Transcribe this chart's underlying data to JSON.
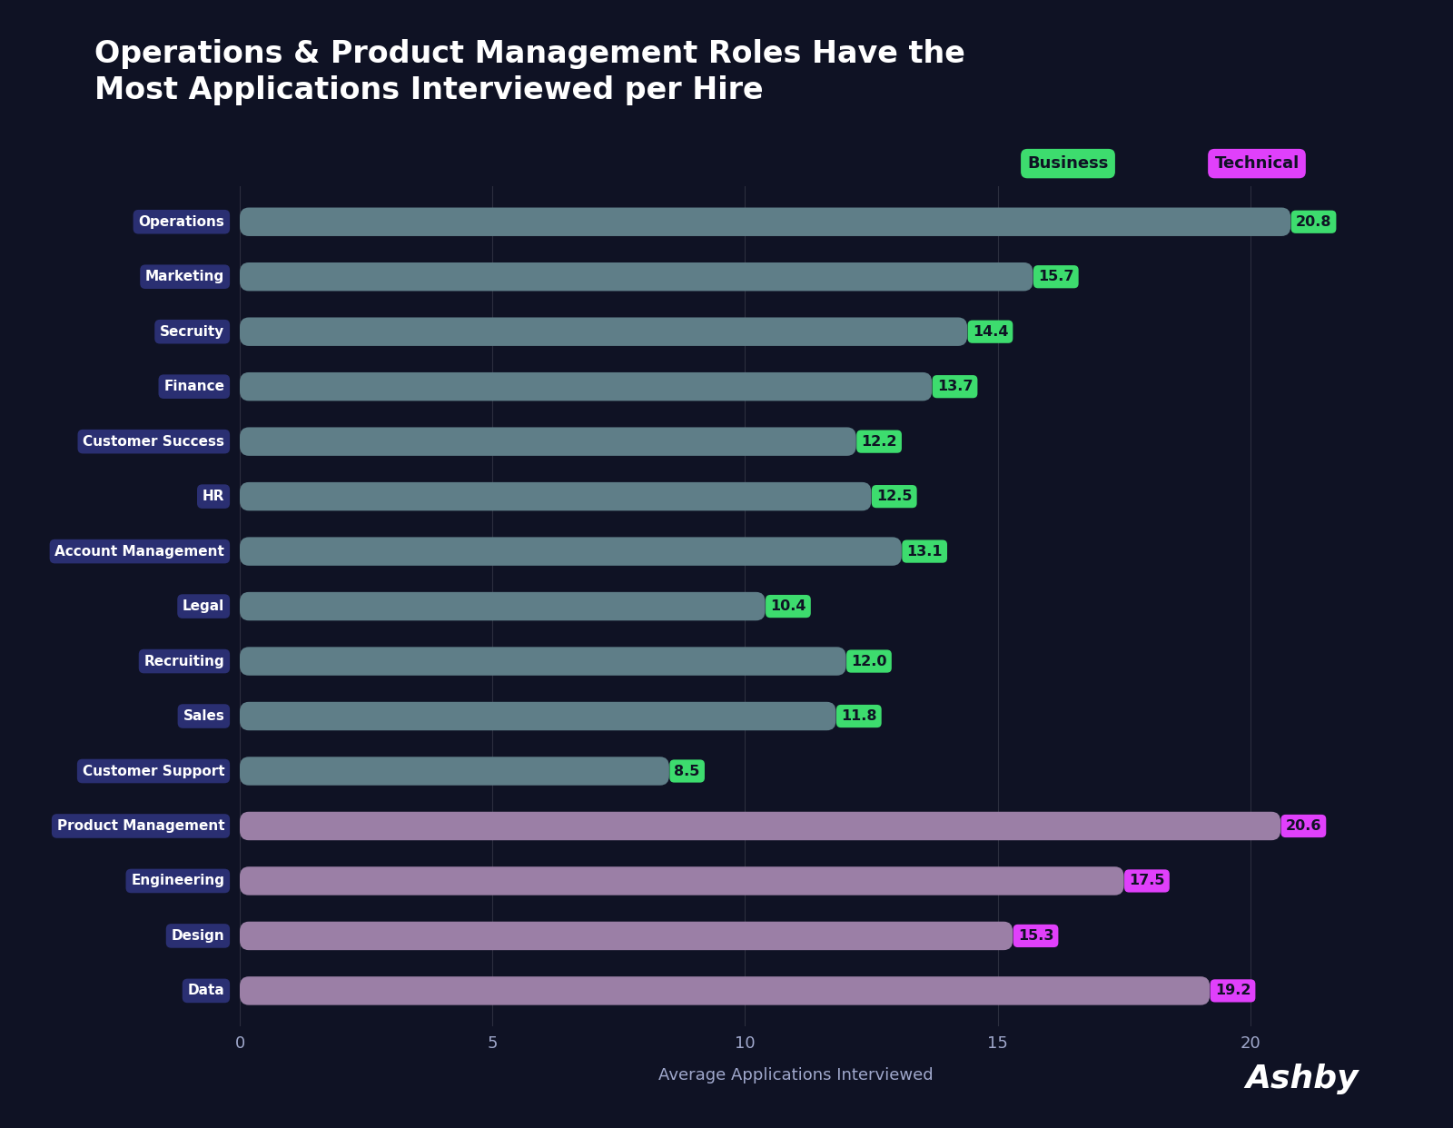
{
  "title": "Operations & Product Management Roles Have the\nMost Applications Interviewed per Hire",
  "xlabel": "Average Applications Interviewed",
  "background_color": "#0f1224",
  "categories": [
    "Operations",
    "Marketing",
    "Secruity",
    "Finance",
    "Customer Success",
    "HR",
    "Account Management",
    "Legal",
    "Recruiting",
    "Sales",
    "Customer Support",
    "Product Management",
    "Engineering",
    "Design",
    "Data"
  ],
  "values": [
    20.8,
    15.7,
    14.4,
    13.7,
    12.2,
    12.5,
    13.1,
    10.4,
    12.0,
    11.8,
    8.5,
    20.6,
    17.5,
    15.3,
    19.2
  ],
  "bar_types": [
    "business",
    "business",
    "business",
    "business",
    "business",
    "business",
    "business",
    "business",
    "business",
    "business",
    "business",
    "technical",
    "technical",
    "technical",
    "technical"
  ],
  "business_bar_color": "#5f7e88",
  "technical_bar_color": "#9b7fa6",
  "business_label_color": "#3ddc6e",
  "technical_label_color": "#e040fb",
  "label_text_color": "#0f1224",
  "y_label_bg": "#2a2f72",
  "grid_color": "#ffffff",
  "grid_alpha": 0.12,
  "title_color": "#ffffff",
  "axis_label_color": "#a0a8cc",
  "tick_label_color": "#a0a8cc",
  "xlim": [
    0,
    22
  ],
  "xticks": [
    0,
    5,
    10,
    15,
    20
  ],
  "legend_business_color": "#3ddc6e",
  "legend_technical_color": "#e040fb",
  "legend_text_color": "#0f1224",
  "ashby_text": "Ashby",
  "ashby_color": "#ffffff"
}
